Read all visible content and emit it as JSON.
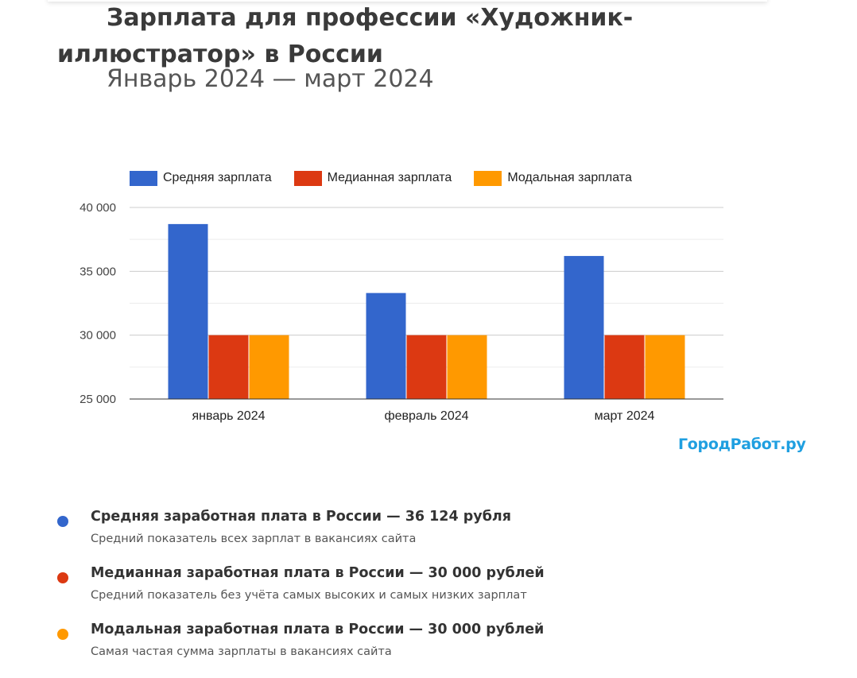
{
  "header": {
    "title": "Зарплата для профессии «Художник-иллюстратор» в России",
    "subtitle": "Январь 2024 — март 2024"
  },
  "legend": {
    "mean": "Средняя зарплата",
    "median": "Медианная зарплата",
    "mode": "Модальная зарплата"
  },
  "brand": "ГородРабот.ру",
  "colors": {
    "mean": "#3366cc",
    "median": "#dc3912",
    "mode": "#ff9900",
    "brand": "#1f9fe0"
  },
  "chart_data": {
    "type": "bar",
    "title": "Зарплата для профессии «Художник-иллюстратор» в России",
    "subtitle": "Январь 2024 — март 2024",
    "categories": [
      "январь 2024",
      "февраль 2024",
      "март 2024"
    ],
    "series": [
      {
        "name": "Средняя зарплата",
        "values": [
          38700,
          33300,
          36200
        ]
      },
      {
        "name": "Медианная зарплата",
        "values": [
          30000,
          30000,
          30000
        ]
      },
      {
        "name": "Модальная зарплата",
        "values": [
          30000,
          30000,
          30000
        ]
      }
    ],
    "ylim": [
      25000,
      40000
    ],
    "yticks": [
      25000,
      30000,
      35000,
      40000
    ],
    "ytick_labels": [
      "25 000",
      "30 000",
      "35 000",
      "40 000"
    ],
    "grid": true,
    "legend_position": "top",
    "xlabel": "",
    "ylabel": ""
  },
  "stats": [
    {
      "title": "Средняя заработная плата в России — 36 124 рубля",
      "desc": "Средний показатель всех зарплат в вакансиях сайта",
      "color": "#3366cc"
    },
    {
      "title": "Медианная заработная плата в России — 30 000 рублей",
      "desc": "Средний показатель без учёта самых высоких и самых низких зарплат",
      "color": "#dc3912"
    },
    {
      "title": "Модальная заработная плата в России — 30 000 рублей",
      "desc": "Самая частая сумма зарплаты в вакансиях сайта",
      "color": "#ff9900"
    }
  ]
}
